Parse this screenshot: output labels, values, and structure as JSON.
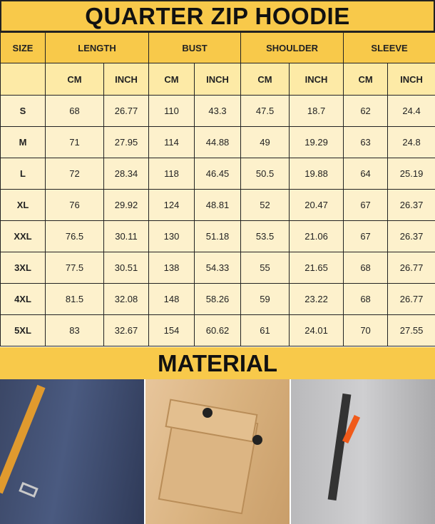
{
  "title": "QUARTER ZIP HOODIE",
  "headers": {
    "size": "SIZE",
    "length": "LENGTH",
    "bust": "BUST",
    "shoulder": "SHOULDER",
    "sleeve": "SLEEVE"
  },
  "units": {
    "cm": "CM",
    "inch": "INCH"
  },
  "rows": [
    [
      "S",
      "68",
      "26.77",
      "110",
      "43.3",
      "47.5",
      "18.7",
      "62",
      "24.4"
    ],
    [
      "M",
      "71",
      "27.95",
      "114",
      "44.88",
      "49",
      "19.29",
      "63",
      "24.8"
    ],
    [
      "L",
      "72",
      "28.34",
      "118",
      "46.45",
      "50.5",
      "19.88",
      "64",
      "25.19"
    ],
    [
      "XL",
      "76",
      "29.92",
      "124",
      "48.81",
      "52",
      "20.47",
      "67",
      "26.37"
    ],
    [
      "XXL",
      "76.5",
      "30.11",
      "130",
      "51.18",
      "53.5",
      "21.06",
      "67",
      "26.37"
    ],
    [
      "3XL",
      "77.5",
      "30.51",
      "138",
      "54.33",
      "55",
      "21.65",
      "68",
      "26.77"
    ],
    [
      "4XL",
      "81.5",
      "32.08",
      "148",
      "58.26",
      "59",
      "23.22",
      "68",
      "26.77"
    ],
    [
      "5XL",
      "83",
      "32.67",
      "154",
      "60.62",
      "61",
      "24.01",
      "70",
      "27.55"
    ]
  ],
  "material_title": "MATERIAL",
  "colors": {
    "header": "#f8c94a",
    "cell": "#fdf1cc"
  }
}
